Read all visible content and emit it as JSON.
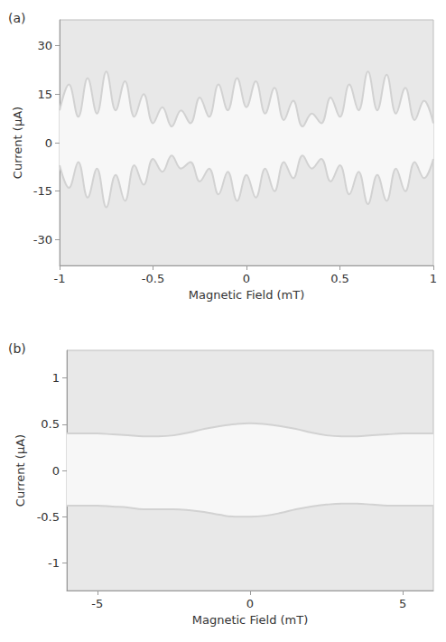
{
  "chart_data": [
    {
      "type": "line",
      "title": "(a)",
      "x_label": "Magnetic Field (mT)",
      "y_label": "Current (μA)",
      "x": [
        -1,
        -0.95,
        -0.9,
        -0.85,
        -0.8,
        -0.75,
        -0.7,
        -0.65,
        -0.6,
        -0.55,
        -0.5,
        -0.45,
        -0.4,
        -0.35,
        -0.3,
        -0.25,
        -0.2,
        -0.15,
        -0.1,
        -0.05,
        0,
        0.05,
        0.1,
        0.15,
        0.2,
        0.25,
        0.3,
        0.35,
        0.4,
        0.45,
        0.5,
        0.55,
        0.6,
        0.65,
        0.7,
        0.75,
        0.8,
        0.85,
        0.9,
        0.95,
        1
      ],
      "series": [
        {
          "color": "#d2d2d2",
          "values": [
            10,
            18,
            8,
            20,
            9,
            22,
            10,
            19,
            8,
            15,
            6,
            11,
            5,
            10,
            6,
            14,
            8,
            18,
            10,
            20,
            11,
            19,
            9,
            17,
            7,
            13,
            5,
            9,
            6,
            14,
            8,
            18,
            10,
            22,
            10,
            21,
            9,
            17,
            7,
            13,
            6
          ]
        },
        {
          "color": "#d2d2d2",
          "values": [
            -7,
            -14,
            -6,
            -17,
            -8,
            -20,
            -10,
            -18,
            -7,
            -13,
            -5,
            -9,
            -4,
            -8,
            -6,
            -12,
            -8,
            -16,
            -9,
            -18,
            -10,
            -17,
            -8,
            -15,
            -6,
            -11,
            -4,
            -8,
            -5,
            -12,
            -7,
            -16,
            -9,
            -19,
            -10,
            -18,
            -8,
            -15,
            -6,
            -11,
            -5
          ]
        }
      ],
      "xlim": [
        -1,
        1
      ],
      "xticks": [
        -1,
        -0.5,
        0,
        0.5,
        1
      ],
      "ylim": [
        -38,
        38
      ],
      "yticks": [
        -30,
        -15,
        0,
        15,
        30
      ],
      "grid": false
    },
    {
      "type": "line",
      "title": "(b)",
      "x_label": "Magnetic Field (mT)",
      "y_label": "Current (μA)",
      "x": [
        -6,
        -5.5,
        -5,
        -4.5,
        -4,
        -3.5,
        -3,
        -2.5,
        -2,
        -1.5,
        -1,
        -0.5,
        0,
        0.5,
        1,
        1.5,
        2,
        2.5,
        3,
        3.5,
        4,
        4.5,
        5,
        5.5,
        6
      ],
      "series": [
        {
          "color": "#d2d2d2",
          "values": [
            0.4,
            0.4,
            0.4,
            0.39,
            0.38,
            0.37,
            0.37,
            0.38,
            0.41,
            0.45,
            0.48,
            0.5,
            0.51,
            0.5,
            0.48,
            0.45,
            0.41,
            0.38,
            0.37,
            0.37,
            0.38,
            0.39,
            0.4,
            0.4,
            0.4
          ]
        },
        {
          "color": "#d2d2d2",
          "values": [
            -0.38,
            -0.38,
            -0.38,
            -0.39,
            -0.4,
            -0.42,
            -0.42,
            -0.42,
            -0.43,
            -0.45,
            -0.48,
            -0.5,
            -0.5,
            -0.49,
            -0.46,
            -0.42,
            -0.39,
            -0.37,
            -0.36,
            -0.36,
            -0.37,
            -0.38,
            -0.38,
            -0.38,
            -0.38
          ]
        }
      ],
      "xlim": [
        -6,
        6
      ],
      "xticks": [
        -5,
        0,
        5
      ],
      "ylim": [
        -1.3,
        1.3
      ],
      "yticks": [
        -1,
        -0.5,
        0,
        0.5,
        1
      ],
      "grid": false
    }
  ]
}
